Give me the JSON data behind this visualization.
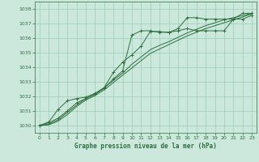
{
  "title": "Graphe pression niveau de la mer (hPa)",
  "background_color": "#cce8dc",
  "plot_bg_color": "#cce8dc",
  "grid_color": "#99ccb8",
  "line_color": "#2d6e3e",
  "marker_color": "#2d6e3e",
  "xlim": [
    -0.5,
    23.5
  ],
  "ylim": [
    1029.5,
    1038.5
  ],
  "xticks": [
    0,
    1,
    2,
    3,
    4,
    5,
    6,
    7,
    8,
    9,
    10,
    11,
    12,
    13,
    14,
    15,
    16,
    17,
    18,
    19,
    20,
    21,
    22,
    23
  ],
  "yticks": [
    1030,
    1031,
    1032,
    1033,
    1034,
    1035,
    1036,
    1037,
    1038
  ],
  "series": [
    {
      "x": [
        0,
        1,
        2,
        3,
        4,
        5,
        6,
        7,
        8,
        9,
        10,
        11,
        12,
        13,
        14,
        15,
        16,
        17,
        18,
        19,
        20,
        21,
        22,
        23
      ],
      "y": [
        1030.0,
        1030.2,
        1030.5,
        1031.0,
        1031.55,
        1031.85,
        1032.15,
        1032.55,
        1033.2,
        1033.75,
        1036.2,
        1036.5,
        1036.5,
        1036.4,
        1036.4,
        1036.5,
        1036.65,
        1036.5,
        1036.5,
        1036.5,
        1036.5,
        1037.3,
        1037.3,
        1037.55
      ],
      "marker": true
    },
    {
      "x": [
        0,
        1,
        2,
        3,
        4,
        5,
        6,
        7,
        8,
        9,
        10,
        11,
        12,
        13,
        14,
        15,
        16,
        17,
        18,
        19,
        20,
        21,
        22,
        23
      ],
      "y": [
        1030.0,
        1030.25,
        1031.1,
        1031.7,
        1031.85,
        1031.95,
        1032.2,
        1032.6,
        1033.65,
        1034.35,
        1034.85,
        1035.45,
        1036.45,
        1036.45,
        1036.38,
        1036.65,
        1037.4,
        1037.4,
        1037.3,
        1037.3,
        1037.3,
        1037.3,
        1037.7,
        1037.7
      ],
      "marker": true
    },
    {
      "x": [
        0,
        1,
        2,
        3,
        4,
        5,
        6,
        7,
        8,
        9,
        10,
        11,
        12,
        13,
        14,
        15,
        16,
        17,
        18,
        19,
        20,
        21,
        22,
        23
      ],
      "y": [
        1030.0,
        1030.1,
        1030.4,
        1030.9,
        1031.4,
        1031.85,
        1032.15,
        1032.6,
        1033.1,
        1033.6,
        1034.2,
        1034.7,
        1035.2,
        1035.5,
        1035.75,
        1036.05,
        1036.35,
        1036.6,
        1036.85,
        1037.05,
        1037.25,
        1037.4,
        1037.55,
        1037.7
      ],
      "marker": false
    },
    {
      "x": [
        0,
        1,
        2,
        3,
        4,
        5,
        6,
        7,
        8,
        9,
        10,
        11,
        12,
        13,
        14,
        15,
        16,
        17,
        18,
        19,
        20,
        21,
        22,
        23
      ],
      "y": [
        1030.0,
        1030.05,
        1030.3,
        1030.75,
        1031.3,
        1031.75,
        1032.05,
        1032.45,
        1032.95,
        1033.45,
        1033.95,
        1034.45,
        1034.95,
        1035.25,
        1035.55,
        1035.85,
        1036.15,
        1036.4,
        1036.65,
        1036.85,
        1037.05,
        1037.25,
        1037.45,
        1037.65
      ],
      "marker": false
    }
  ]
}
